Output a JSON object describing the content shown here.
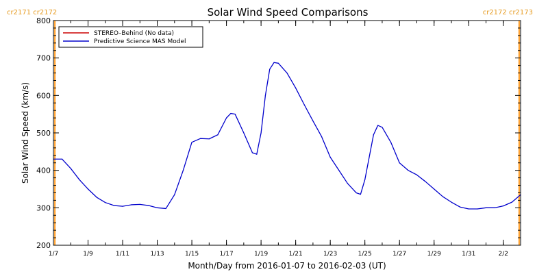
{
  "colors": {
    "background": "#ffffff",
    "axis": "#000000",
    "series_model": "#0000cc",
    "series_stereo": "#cc0000",
    "carrington": "#ff9a1f",
    "carrington_label": "#e69a1e"
  },
  "carrington_labels": {
    "left": "cr2171 cr2172",
    "right": "cr2172 cr2173"
  },
  "chart_data": {
    "type": "line",
    "title": "Solar Wind Speed Comparisons",
    "xlabel": "Month/Day from 2016-01-07 to 2016-02-03 (UT)",
    "ylabel": "Solar Wind Speed (km/s)",
    "ylim": [
      200,
      800
    ],
    "xlim": [
      "2016-01-07",
      "2016-02-03"
    ],
    "y_ticks": [
      "200",
      "300",
      "400",
      "500",
      "600",
      "700",
      "800"
    ],
    "x_ticks": [
      {
        "label": "1/7",
        "date": "2016-01-07"
      },
      {
        "label": "1/9",
        "date": "2016-01-09"
      },
      {
        "label": "1/11",
        "date": "2016-01-11"
      },
      {
        "label": "1/13",
        "date": "2016-01-13"
      },
      {
        "label": "1/15",
        "date": "2016-01-15"
      },
      {
        "label": "1/17",
        "date": "2016-01-17"
      },
      {
        "label": "1/19",
        "date": "2016-01-19"
      },
      {
        "label": "1/21",
        "date": "2016-01-21"
      },
      {
        "label": "1/23",
        "date": "2016-01-23"
      },
      {
        "label": "1/25",
        "date": "2016-01-25"
      },
      {
        "label": "1/27",
        "date": "2016-01-27"
      },
      {
        "label": "1/29",
        "date": "2016-01-29"
      },
      {
        "label": "1/31",
        "date": "2016-01-31"
      },
      {
        "label": "2/2",
        "date": "2016-02-02"
      }
    ],
    "carrington_rotation_dates": [
      "2016-01-07 02:00",
      "2016-02-02 22:00"
    ],
    "legend": {
      "position": "top-left",
      "entries": [
        {
          "label": "STEREO–Behind (No data)",
          "color": "#cc0000"
        },
        {
          "label": "Predictive Science MAS Model",
          "color": "#0000cc"
        }
      ]
    },
    "series": [
      {
        "name": "Predictive Science MAS Model",
        "color": "#0000cc",
        "points": [
          [
            "2016-01-07 00:00",
            430
          ],
          [
            "2016-01-07 12:00",
            430
          ],
          [
            "2016-01-08 00:00",
            405
          ],
          [
            "2016-01-08 12:00",
            375
          ],
          [
            "2016-01-09 00:00",
            350
          ],
          [
            "2016-01-09 12:00",
            328
          ],
          [
            "2016-01-10 00:00",
            314
          ],
          [
            "2016-01-10 12:00",
            306
          ],
          [
            "2016-01-11 00:00",
            304
          ],
          [
            "2016-01-11 12:00",
            308
          ],
          [
            "2016-01-12 00:00",
            309
          ],
          [
            "2016-01-12 12:00",
            306
          ],
          [
            "2016-01-13 00:00",
            300
          ],
          [
            "2016-01-13 12:00",
            298
          ],
          [
            "2016-01-14 00:00",
            335
          ],
          [
            "2016-01-14 12:00",
            400
          ],
          [
            "2016-01-15 00:00",
            475
          ],
          [
            "2016-01-15 12:00",
            485
          ],
          [
            "2016-01-16 00:00",
            484
          ],
          [
            "2016-01-16 12:00",
            495
          ],
          [
            "2016-01-17 00:00",
            540
          ],
          [
            "2016-01-17 06:00",
            552
          ],
          [
            "2016-01-17 12:00",
            550
          ],
          [
            "2016-01-18 00:00",
            500
          ],
          [
            "2016-01-18 12:00",
            447
          ],
          [
            "2016-01-18 18:00",
            443
          ],
          [
            "2016-01-19 00:00",
            500
          ],
          [
            "2016-01-19 06:00",
            600
          ],
          [
            "2016-01-19 12:00",
            670
          ],
          [
            "2016-01-19 18:00",
            688
          ],
          [
            "2016-01-20 00:00",
            686
          ],
          [
            "2016-01-20 12:00",
            660
          ],
          [
            "2016-01-21 00:00",
            620
          ],
          [
            "2016-01-21 12:00",
            575
          ],
          [
            "2016-01-22 00:00",
            532
          ],
          [
            "2016-01-22 12:00",
            490
          ],
          [
            "2016-01-23 00:00",
            435
          ],
          [
            "2016-01-23 12:00",
            400
          ],
          [
            "2016-01-24 00:00",
            365
          ],
          [
            "2016-01-24 12:00",
            340
          ],
          [
            "2016-01-24 18:00",
            336
          ],
          [
            "2016-01-25 00:00",
            375
          ],
          [
            "2016-01-25 12:00",
            495
          ],
          [
            "2016-01-25 18:00",
            520
          ],
          [
            "2016-01-26 00:00",
            515
          ],
          [
            "2016-01-26 12:00",
            475
          ],
          [
            "2016-01-27 00:00",
            420
          ],
          [
            "2016-01-27 12:00",
            400
          ],
          [
            "2016-01-28 00:00",
            388
          ],
          [
            "2016-01-28 12:00",
            370
          ],
          [
            "2016-01-29 00:00",
            350
          ],
          [
            "2016-01-29 12:00",
            330
          ],
          [
            "2016-01-30 00:00",
            315
          ],
          [
            "2016-01-30 12:00",
            302
          ],
          [
            "2016-01-31 00:00",
            297
          ],
          [
            "2016-01-31 12:00",
            297
          ],
          [
            "2016-02-01 00:00",
            300
          ],
          [
            "2016-02-01 12:00",
            300
          ],
          [
            "2016-02-02 00:00",
            305
          ],
          [
            "2016-02-02 12:00",
            315
          ],
          [
            "2016-02-03 00:00",
            335
          ]
        ]
      }
    ]
  }
}
